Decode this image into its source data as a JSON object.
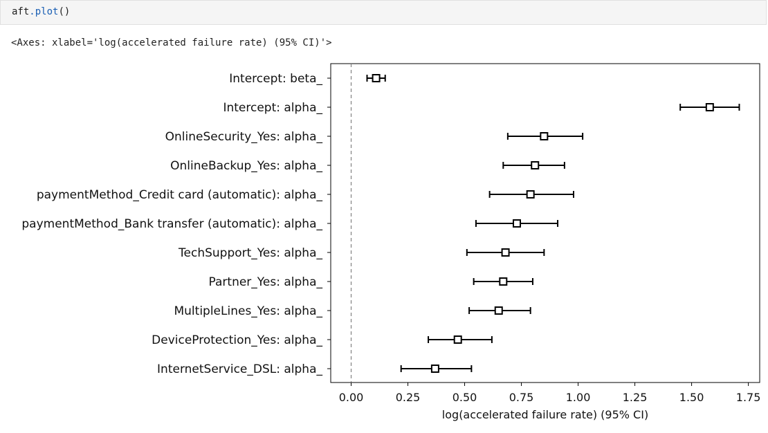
{
  "cell": {
    "code_var": "aft",
    "code_func": ".plot",
    "code_parens": "()",
    "output": "<Axes: xlabel='log(accelerated failure rate) (95% CI)'>"
  },
  "colors": {
    "marker_fill": "#ffffff",
    "line": "#000000",
    "zero_line": "#808080"
  },
  "chart_data": {
    "type": "errorbar",
    "xlabel": "log(accelerated failure rate) (95% CI)",
    "ylabel": "",
    "xlim": [
      -0.09,
      1.8
    ],
    "x_ticks": [
      0.0,
      0.25,
      0.5,
      0.75,
      1.0,
      1.25,
      1.5,
      1.75
    ],
    "x_tick_labels": [
      "0.00",
      "0.25",
      "0.50",
      "0.75",
      "1.00",
      "1.25",
      "1.50",
      "1.75"
    ],
    "reference_line": 0.0,
    "points": [
      {
        "label": "Intercept: beta_",
        "coef": 0.11,
        "lower": 0.07,
        "upper": 0.15
      },
      {
        "label": "Intercept: alpha_",
        "coef": 1.58,
        "lower": 1.45,
        "upper": 1.71
      },
      {
        "label": "OnlineSecurity_Yes: alpha_",
        "coef": 0.85,
        "lower": 0.69,
        "upper": 1.02
      },
      {
        "label": "OnlineBackup_Yes: alpha_",
        "coef": 0.81,
        "lower": 0.67,
        "upper": 0.94
      },
      {
        "label": "paymentMethod_Credit card (automatic): alpha_",
        "coef": 0.79,
        "lower": 0.61,
        "upper": 0.98
      },
      {
        "label": "paymentMethod_Bank transfer (automatic): alpha_",
        "coef": 0.73,
        "lower": 0.55,
        "upper": 0.91
      },
      {
        "label": "TechSupport_Yes: alpha_",
        "coef": 0.68,
        "lower": 0.51,
        "upper": 0.85
      },
      {
        "label": "Partner_Yes: alpha_",
        "coef": 0.67,
        "lower": 0.54,
        "upper": 0.8
      },
      {
        "label": "MultipleLines_Yes: alpha_",
        "coef": 0.65,
        "lower": 0.52,
        "upper": 0.79
      },
      {
        "label": "DeviceProtection_Yes: alpha_",
        "coef": 0.47,
        "lower": 0.34,
        "upper": 0.62
      },
      {
        "label": "InternetService_DSL: alpha_",
        "coef": 0.37,
        "lower": 0.22,
        "upper": 0.53
      }
    ]
  }
}
